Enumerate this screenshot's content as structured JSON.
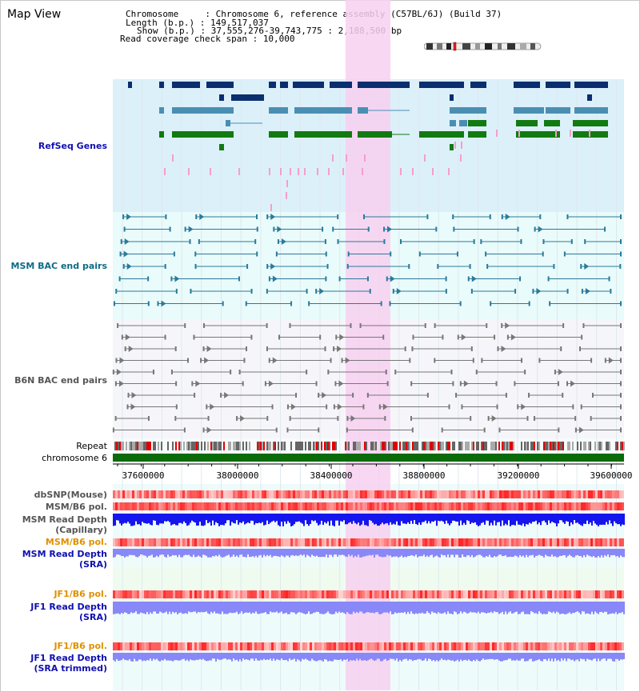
{
  "title": "Map View",
  "info": {
    "chromosome_label": "Chromosome     : ",
    "chromosome_value": "Chromosome 6, reference assembly (C57BL/6J) (Build 37)",
    "length_label": "Length (b.p.) : ",
    "length_value": "149,517,037",
    "show_label": "Show (b.p.) : ",
    "show_value": "37,555,276-39,743,775 : 2,188,500 bp",
    "coverage_label": "Read coverage check span : ",
    "coverage_value": "10,000"
  },
  "tracks": {
    "refseq": "RefSeq Genes",
    "msm_bac": "MSM BAC end pairs",
    "b6n_bac": "B6N BAC end pairs",
    "repeat": "Repeat",
    "chromosome": "chromosome 6",
    "dbsnp": "dbSNP(Mouse)",
    "msm_pol1": "MSM/B6 pol.",
    "msm_depth_cap_1": "MSM Read Depth",
    "msm_depth_cap_2": "(Capillary)",
    "msm_pol2": "MSM/B6 pol.",
    "msm_depth_sra_1": "MSM Read Depth",
    "msm_depth_sra_2": "(SRA)",
    "jf1_pol1": "JF1/B6 pol.",
    "jf1_depth_1": "JF1 Read Depth",
    "jf1_depth_2": "(SRA)",
    "jf1_pol2": "JF1/B6 pol.",
    "jf1_trim_1": "JF1 Read Depth",
    "jf1_trim_2": "(SRA trimmed)"
  },
  "axis_ticks": [
    "37600000",
    "38000000",
    "38400000",
    "38800000",
    "39200000",
    "39600000"
  ],
  "colors": {
    "refseq_bg": "#dcf0fa",
    "msm_bac_bg": "#e9fbfb",
    "b6n_bac_bg": "#f6f6fa",
    "highlight": "#f7d0f0",
    "navy": "#0a2e6e",
    "steel": "#4a8fb3",
    "green": "#117a11",
    "pink": "#f4a0c8",
    "teal_line": "#2a7a9a",
    "gray_line": "#777777",
    "chrom_green": "#0b6b0b",
    "label_blue": "#1010b0",
    "label_teal": "#0f6b86",
    "label_gray": "#555555",
    "label_orange": "#e09000",
    "depth_blue": "#1515ee",
    "depth_light": "#8888f8"
  }
}
